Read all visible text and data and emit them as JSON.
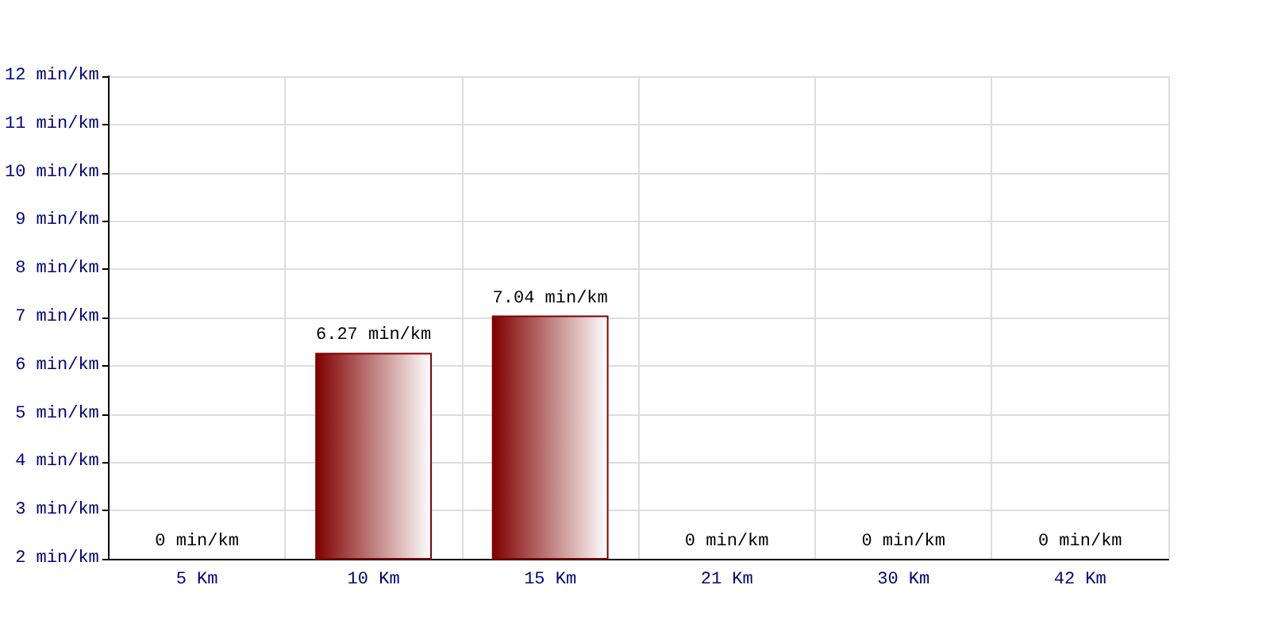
{
  "chart_data": {
    "type": "bar",
    "categories": [
      "5 Km",
      "10 Km",
      "15 Km",
      "21 Km",
      "30 Km",
      "42 Km"
    ],
    "values": [
      null,
      6.27,
      7.04,
      null,
      null,
      null
    ],
    "value_labels": [
      "0 min/km",
      "6.27 min/km",
      "7.04 min/km",
      "0 min/km",
      "0 min/km",
      "0 min/km"
    ],
    "color": "#800000",
    "ylim": [
      2,
      12
    ],
    "yticks": [
      {
        "value": 2,
        "label": "2 min/km"
      },
      {
        "value": 3,
        "label": "3 min/km"
      },
      {
        "value": 4,
        "label": "4 min/km"
      },
      {
        "value": 5,
        "label": "5 min/km"
      },
      {
        "value": 6,
        "label": "6 min/km"
      },
      {
        "value": 7,
        "label": "7 min/km"
      },
      {
        "value": 8,
        "label": "8 min/km"
      },
      {
        "value": 9,
        "label": "9 min/km"
      },
      {
        "value": 10,
        "label": "10 min/km"
      },
      {
        "value": 11,
        "label": "11 min/km"
      },
      {
        "value": 12,
        "label": "12 min/km"
      }
    ],
    "grid": true
  }
}
